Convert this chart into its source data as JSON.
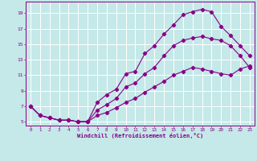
{
  "title": "",
  "xlabel": "Windchill (Refroidissement éolien,°C)",
  "ylabel": "",
  "bg_color": "#c5e8e8",
  "line_color": "#880088",
  "grid_color": "#ffffff",
  "xlim": [
    -0.5,
    23.5
  ],
  "ylim": [
    4.5,
    20.5
  ],
  "xticks": [
    0,
    1,
    2,
    3,
    4,
    5,
    6,
    7,
    8,
    9,
    10,
    11,
    12,
    13,
    14,
    15,
    16,
    17,
    18,
    19,
    20,
    21,
    22,
    23
  ],
  "yticks": [
    5,
    7,
    9,
    11,
    13,
    15,
    17,
    19
  ],
  "curve1_x": [
    0,
    1,
    2,
    3,
    4,
    5,
    6,
    7,
    8,
    9,
    10,
    11,
    12,
    13,
    14,
    15,
    16,
    17,
    18,
    19,
    20,
    21,
    22,
    23
  ],
  "curve1_y": [
    7.0,
    5.8,
    5.5,
    5.2,
    5.2,
    5.0,
    5.0,
    7.5,
    8.5,
    9.2,
    11.2,
    11.5,
    13.8,
    14.8,
    16.3,
    17.5,
    18.8,
    19.2,
    19.5,
    19.2,
    17.3,
    16.1,
    14.8,
    13.5
  ],
  "curve2_x": [
    0,
    1,
    2,
    3,
    4,
    5,
    6,
    7,
    8,
    9,
    10,
    11,
    12,
    13,
    14,
    15,
    16,
    17,
    18,
    19,
    20,
    21,
    22,
    23
  ],
  "curve2_y": [
    7.0,
    5.8,
    5.5,
    5.2,
    5.2,
    5.0,
    5.0,
    6.5,
    7.2,
    8.0,
    9.5,
    10.0,
    11.2,
    12.0,
    13.5,
    14.8,
    15.5,
    15.8,
    16.0,
    15.7,
    15.5,
    14.8,
    13.5,
    12.0
  ],
  "curve3_x": [
    0,
    1,
    2,
    3,
    4,
    5,
    6,
    7,
    8,
    9,
    10,
    11,
    12,
    13,
    14,
    15,
    16,
    17,
    18,
    19,
    20,
    21,
    22,
    23
  ],
  "curve3_y": [
    7.0,
    5.8,
    5.5,
    5.2,
    5.2,
    5.0,
    5.0,
    5.8,
    6.2,
    6.8,
    7.5,
    8.0,
    8.8,
    9.5,
    10.2,
    11.0,
    11.5,
    12.0,
    11.8,
    11.5,
    11.2,
    11.0,
    11.8,
    12.2
  ]
}
